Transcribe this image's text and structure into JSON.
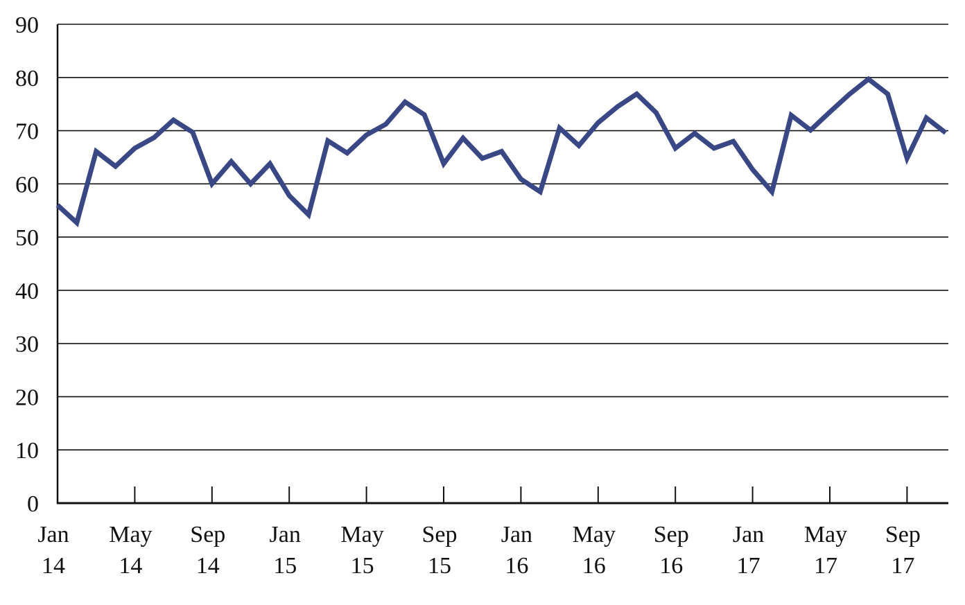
{
  "colors": {
    "line": "#3a4785",
    "grid": "#111111",
    "axis": "#111111",
    "background": "#ffffff"
  },
  "chart_data": {
    "type": "line",
    "title": "",
    "xlabel": "",
    "ylabel": "",
    "ylim": [
      0,
      90
    ],
    "yticks": [
      0,
      10,
      20,
      30,
      40,
      50,
      60,
      70,
      80,
      90
    ],
    "grid": "horizontal",
    "legend": "none",
    "x_tick_labels": [
      {
        "month": "Jan",
        "year": "14"
      },
      {
        "month": "May",
        "year": "14"
      },
      {
        "month": "Sep",
        "year": "14"
      },
      {
        "month": "Jan",
        "year": "15"
      },
      {
        "month": "May",
        "year": "15"
      },
      {
        "month": "Sep",
        "year": "15"
      },
      {
        "month": "Jan",
        "year": "16"
      },
      {
        "month": "May",
        "year": "16"
      },
      {
        "month": "Sep",
        "year": "16"
      },
      {
        "month": "Jan",
        "year": "17"
      },
      {
        "month": "May",
        "year": "17"
      },
      {
        "month": "Sep",
        "year": "17"
      }
    ],
    "x": [
      "2014-01",
      "2014-02",
      "2014-03",
      "2014-04",
      "2014-05",
      "2014-06",
      "2014-07",
      "2014-08",
      "2014-09",
      "2014-10",
      "2014-11",
      "2014-12",
      "2015-01",
      "2015-02",
      "2015-03",
      "2015-04",
      "2015-05",
      "2015-06",
      "2015-07",
      "2015-08",
      "2015-09",
      "2015-10",
      "2015-11",
      "2015-12",
      "2016-01",
      "2016-02",
      "2016-03",
      "2016-04",
      "2016-05",
      "2016-06",
      "2016-07",
      "2016-08",
      "2016-09",
      "2016-10",
      "2016-11",
      "2016-12",
      "2017-01",
      "2017-02",
      "2017-03",
      "2017-04",
      "2017-05",
      "2017-06",
      "2017-07",
      "2017-08",
      "2017-09",
      "2017-10",
      "2017-11"
    ],
    "series": [
      {
        "values": [
          56.0,
          52.7,
          66.1,
          63.3,
          66.7,
          68.7,
          72.0,
          69.7,
          60.0,
          64.2,
          60.0,
          63.8,
          57.8,
          54.2,
          68.1,
          65.8,
          69.2,
          71.2,
          75.4,
          73.0,
          63.8,
          68.6,
          64.8,
          66.1,
          60.9,
          58.5,
          70.5,
          67.2,
          71.5,
          74.5,
          76.9,
          73.4,
          66.7,
          69.5,
          66.7,
          68.0,
          62.7,
          58.5,
          72.9,
          70.1,
          73.5,
          76.8,
          79.7,
          76.9,
          64.8,
          72.4,
          69.6
        ]
      }
    ]
  }
}
